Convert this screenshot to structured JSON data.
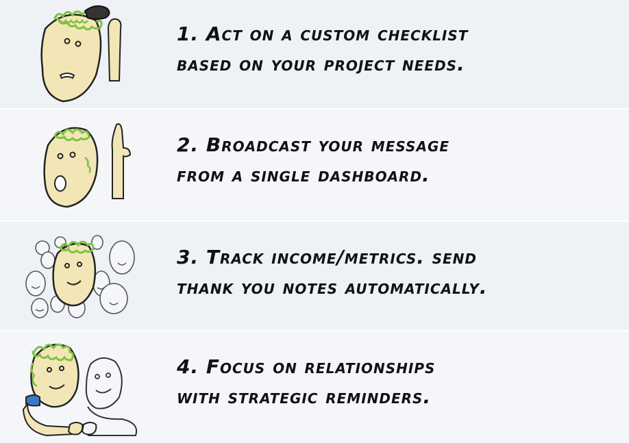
{
  "colors": {
    "skin": "#f2e6b6",
    "hair": "#7dc242",
    "outline": "#222222",
    "band_light": "#eef1f5",
    "band_lighter": "#f4f6f9",
    "sleeve": "#3a78c3"
  },
  "steps": [
    {
      "line1": "1. Act on a custom checklist",
      "line2": "based on your project needs.",
      "icon": "confused-person-scratching-head-icon"
    },
    {
      "line1": "2. Broadcast your message",
      "line2": "from a single dashboard.",
      "icon": "surprised-person-finger-up-icon"
    },
    {
      "line1": "3. Track income/metrics. send",
      "line2": "thank you notes automatically.",
      "icon": "person-in-crowd-icon"
    },
    {
      "line1": "4. Focus on relationships",
      "line2": "with strategic reminders.",
      "icon": "fist-bump-friends-icon"
    }
  ]
}
